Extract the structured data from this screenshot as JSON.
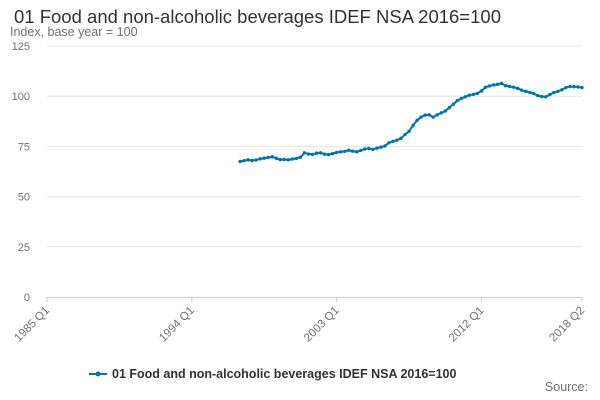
{
  "chart_data": {
    "type": "line",
    "title": "01 Food and non-alcoholic beverages IDEF NSA 2016=100",
    "ylabel": "Index, base year = 100",
    "xlabel": "",
    "ylim": [
      0,
      125
    ],
    "yticks": [
      0,
      25,
      50,
      75,
      100,
      125
    ],
    "x_tick_labels": [
      "1985 Q1",
      "1994 Q1",
      "2003 Q1",
      "2012 Q1",
      "2018 Q2"
    ],
    "grid": "horizontal",
    "legend_position": "bottom",
    "series": [
      {
        "name": "01 Food and non-alcoholic beverages IDEF NSA 2016=100",
        "color": "#0075A3",
        "x": [
          "1997 Q1",
          "1997 Q2",
          "1997 Q3",
          "1997 Q4",
          "1998 Q1",
          "1998 Q2",
          "1998 Q3",
          "1998 Q4",
          "1999 Q1",
          "1999 Q2",
          "1999 Q3",
          "1999 Q4",
          "2000 Q1",
          "2000 Q2",
          "2000 Q3",
          "2000 Q4",
          "2001 Q1",
          "2001 Q2",
          "2001 Q3",
          "2001 Q4",
          "2002 Q1",
          "2002 Q2",
          "2002 Q3",
          "2002 Q4",
          "2003 Q1",
          "2003 Q2",
          "2003 Q3",
          "2003 Q4",
          "2004 Q1",
          "2004 Q2",
          "2004 Q3",
          "2004 Q4",
          "2005 Q1",
          "2005 Q2",
          "2005 Q3",
          "2005 Q4",
          "2006 Q1",
          "2006 Q2",
          "2006 Q3",
          "2006 Q4",
          "2007 Q1",
          "2007 Q2",
          "2007 Q3",
          "2007 Q4",
          "2008 Q1",
          "2008 Q2",
          "2008 Q3",
          "2008 Q4",
          "2009 Q1",
          "2009 Q2",
          "2009 Q3",
          "2009 Q4",
          "2010 Q1",
          "2010 Q2",
          "2010 Q3",
          "2010 Q4",
          "2011 Q1",
          "2011 Q2",
          "2011 Q3",
          "2011 Q4",
          "2012 Q1",
          "2012 Q2",
          "2012 Q3",
          "2012 Q4",
          "2013 Q1",
          "2013 Q2",
          "2013 Q3",
          "2013 Q4",
          "2014 Q1",
          "2014 Q2",
          "2014 Q3",
          "2014 Q4",
          "2015 Q1",
          "2015 Q2",
          "2015 Q3",
          "2015 Q4",
          "2016 Q1",
          "2016 Q2",
          "2016 Q3",
          "2016 Q4",
          "2017 Q1",
          "2017 Q2",
          "2017 Q3",
          "2017 Q4",
          "2018 Q1",
          "2018 Q2"
        ],
        "values": [
          67.5,
          67.9,
          68.3,
          68.0,
          68.2,
          68.8,
          69.1,
          69.5,
          69.8,
          69.1,
          68.4,
          68.5,
          68.3,
          68.7,
          69.0,
          69.6,
          71.8,
          71.2,
          71.0,
          71.6,
          71.8,
          71.1,
          70.9,
          71.4,
          72.0,
          72.3,
          72.5,
          73.1,
          72.6,
          72.3,
          73.0,
          73.7,
          74.0,
          73.5,
          74.1,
          74.6,
          75.2,
          76.8,
          77.5,
          78.1,
          79.0,
          80.9,
          82.5,
          85.5,
          88.0,
          89.6,
          90.6,
          90.7,
          89.6,
          90.7,
          91.7,
          92.6,
          94.3,
          96.0,
          97.8,
          98.9,
          99.7,
          100.5,
          100.9,
          101.4,
          102.6,
          104.4,
          105.1,
          105.6,
          105.9,
          106.4,
          105.2,
          104.8,
          104.5,
          103.9,
          103.0,
          102.4,
          101.9,
          101.3,
          100.3,
          99.8,
          99.7,
          100.8,
          101.8,
          102.4,
          103.2,
          104.3,
          104.8,
          104.7,
          104.6,
          104.3
        ]
      }
    ]
  },
  "source_label": "Source:"
}
